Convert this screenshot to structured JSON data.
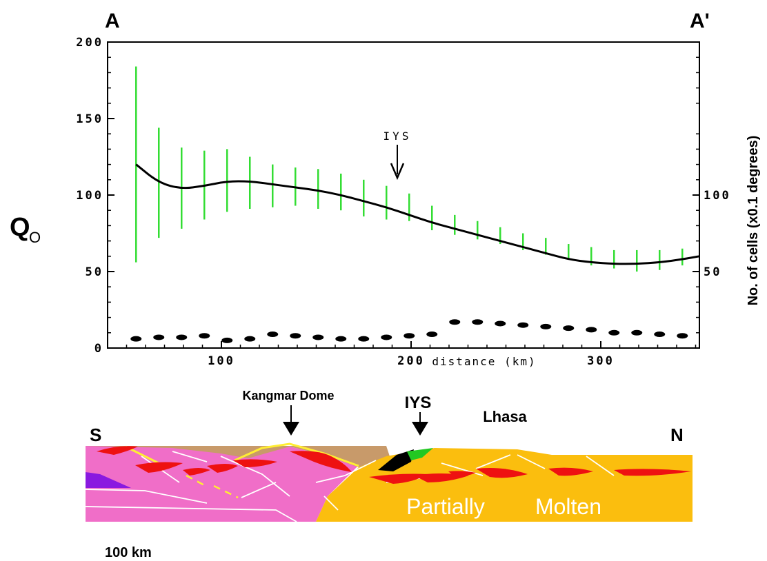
{
  "chart_data": {
    "type": "line",
    "corner_labels": {
      "left": "A",
      "right": "A'"
    },
    "ylabel": "Q",
    "ylabel_subscript": "O",
    "ylabel_right": "No. of cells (x0.1 degrees)",
    "xlabel": "distance (km)",
    "xlim": [
      40,
      352
    ],
    "ylim": [
      0,
      200
    ],
    "x_ticks": [
      100,
      200,
      300
    ],
    "y_ticks": [
      0,
      50,
      100,
      150,
      200
    ],
    "y_ticks_right": [
      50,
      100
    ],
    "grid": false,
    "annotation": {
      "text": "IYS",
      "x": 200,
      "y": 118
    },
    "series": [
      {
        "kind": "qo-curve",
        "color": "#000000",
        "x": [
          55,
          67,
          79,
          91,
          103,
          115,
          127,
          139,
          151,
          163,
          175,
          187,
          199,
          211,
          223,
          235,
          247,
          259,
          271,
          283,
          295,
          307,
          319,
          331,
          343,
          352
        ],
        "y": [
          120,
          108,
          104,
          106,
          109,
          109,
          107,
          105,
          103,
          100,
          96,
          92,
          87,
          82,
          78,
          74,
          70,
          66,
          62,
          58,
          56,
          55,
          55,
          56,
          58,
          60
        ]
      },
      {
        "kind": "error-bars",
        "color": "#33dd33",
        "x": [
          55,
          67,
          79,
          91,
          103,
          115,
          127,
          139,
          151,
          163,
          175,
          187,
          199,
          211,
          223,
          235,
          247,
          259,
          271,
          283,
          295,
          307,
          319,
          331,
          343
        ],
        "low": [
          56,
          72,
          78,
          84,
          89,
          91,
          92,
          93,
          91,
          90,
          86,
          84,
          83,
          77,
          74,
          71,
          68,
          64,
          61,
          58,
          54,
          52,
          50,
          51,
          54
        ],
        "high": [
          184,
          144,
          131,
          129,
          130,
          125,
          120,
          118,
          117,
          114,
          110,
          106,
          101,
          93,
          87,
          83,
          79,
          75,
          72,
          68,
          66,
          64,
          64,
          64,
          65
        ]
      },
      {
        "kind": "cell-count",
        "color": "#000000",
        "x": [
          55,
          67,
          79,
          91,
          103,
          115,
          127,
          139,
          151,
          163,
          175,
          187,
          199,
          211,
          223,
          235,
          247,
          259,
          271,
          283,
          295,
          307,
          319,
          331,
          343
        ],
        "y": [
          6,
          7,
          7,
          8,
          5,
          6,
          9,
          8,
          7,
          6,
          6,
          7,
          8,
          9,
          17,
          17,
          16,
          15,
          14,
          13,
          12,
          10,
          10,
          9,
          8
        ]
      }
    ]
  },
  "cross_section": {
    "labels": {
      "south": "S",
      "north": "N",
      "dome": "Kangmar Dome",
      "iys": "IYS",
      "lhasa": "Lhasa",
      "molten_1": "Partially",
      "molten_2": "Molten",
      "scale": "100 km"
    },
    "colors": {
      "pink": "#f06ec8",
      "orange": "#fbbe0e",
      "brown": "#c89a6a",
      "red": "#ee1111",
      "purple": "#8a19e0",
      "yellow": "#ffee33",
      "green": "#22c822"
    }
  }
}
